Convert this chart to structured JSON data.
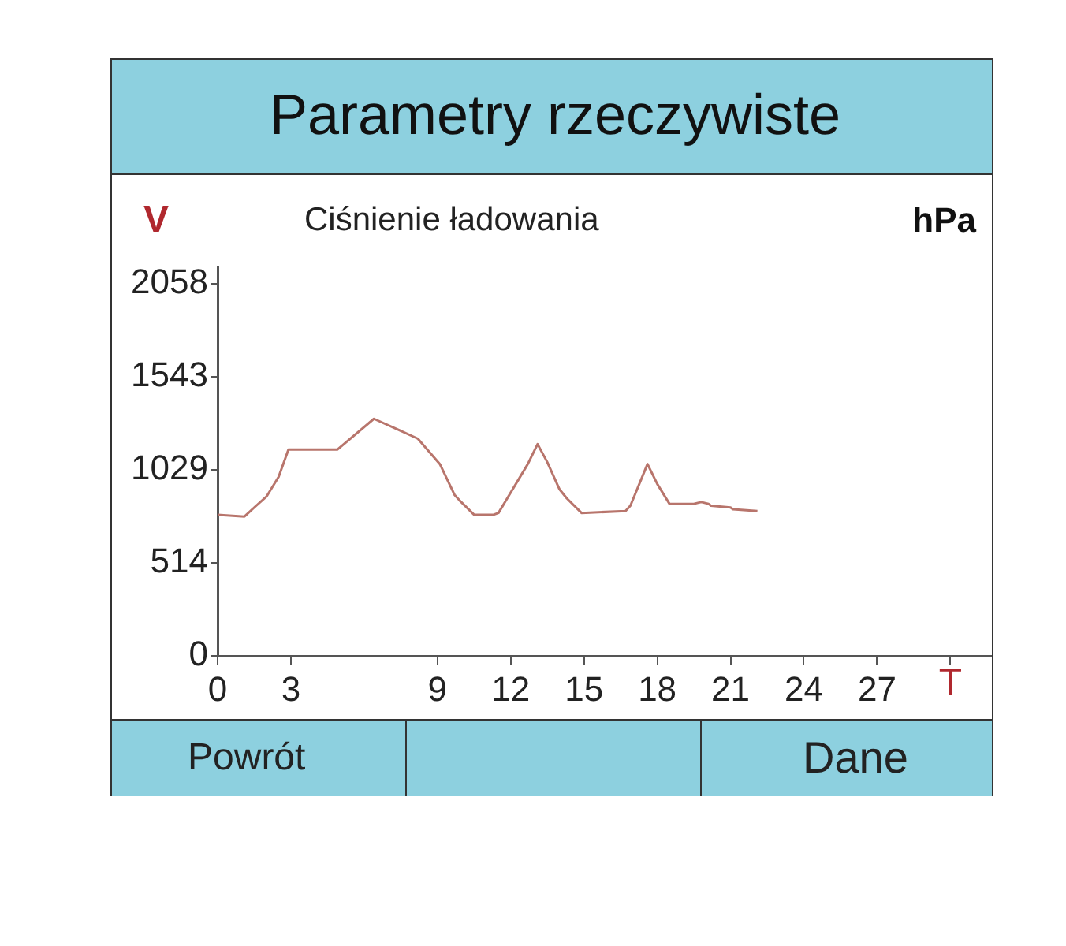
{
  "chart_data": {
    "type": "line",
    "title": "Parametry rzeczywiste",
    "subtitle": "Ciśnienie ładowania",
    "ylabel": "V",
    "xlabel": "T",
    "annotations": [
      "hPa",
      "Powrót",
      "Dane"
    ],
    "series": [
      {
        "color": "#b8756c",
        "x": [
          0,
          1.1,
          1.5,
          2.0,
          2.5,
          2.9,
          4.9,
          6.4,
          7.4,
          8.2,
          9.1,
          9.7,
          9.9,
          10.5,
          11.3,
          11.5,
          11.9,
          12.7,
          13.1,
          13.5,
          14.0,
          14.3,
          14.9,
          16.7,
          16.9,
          17.6,
          18.0,
          18.5,
          19.5,
          19.8,
          20.1,
          20.2,
          21.0,
          21.1,
          22.1
        ],
        "values": [
          780,
          770,
          820,
          880,
          990,
          1140,
          1140,
          1310,
          1250,
          1200,
          1060,
          890,
          860,
          780,
          780,
          790,
          880,
          1060,
          1170,
          1070,
          920,
          870,
          790,
          800,
          830,
          1060,
          950,
          840,
          840,
          850,
          840,
          830,
          820,
          810,
          800
        ]
      }
    ],
    "xlim": [
      0,
      31.7
    ],
    "xticks": [
      0,
      3,
      9,
      12,
      15,
      18,
      21,
      24,
      27,
      {
        "value": 30,
        "label": null
      }
    ],
    "ylim": [
      0,
      2150
    ],
    "yticks": [
      0,
      514,
      1029,
      1543,
      2058
    ],
    "grid": false,
    "legend": false,
    "marker": "none",
    "line_style": "solid"
  }
}
